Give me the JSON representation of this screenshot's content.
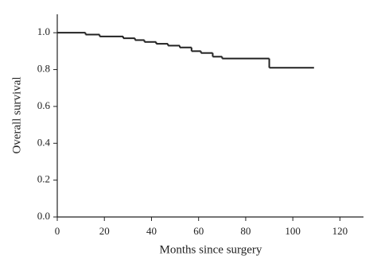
{
  "chart_data": {
    "type": "step",
    "xlabel": "Months since surgery",
    "ylabel": "Overall survival",
    "x": [
      0,
      12,
      18,
      28,
      33,
      37,
      42,
      47,
      52,
      57,
      61,
      66,
      70,
      90,
      109
    ],
    "series": [
      {
        "color": "#111111",
        "values": [
          1.0,
          0.99,
          0.98,
          0.97,
          0.96,
          0.95,
          0.94,
          0.93,
          0.92,
          0.9,
          0.89,
          0.87,
          0.86,
          0.81,
          0.81
        ]
      }
    ],
    "xlim": [
      0,
      130
    ],
    "xticks": [
      0,
      20,
      40,
      60,
      80,
      100,
      120
    ],
    "ylim": [
      0,
      1.1
    ],
    "yticks": [
      {
        "value": 0,
        "label": "0.0"
      },
      0.2,
      0.4,
      0.6,
      0.8,
      {
        "value": 1,
        "label": "1.0"
      }
    ],
    "grid": false
  }
}
